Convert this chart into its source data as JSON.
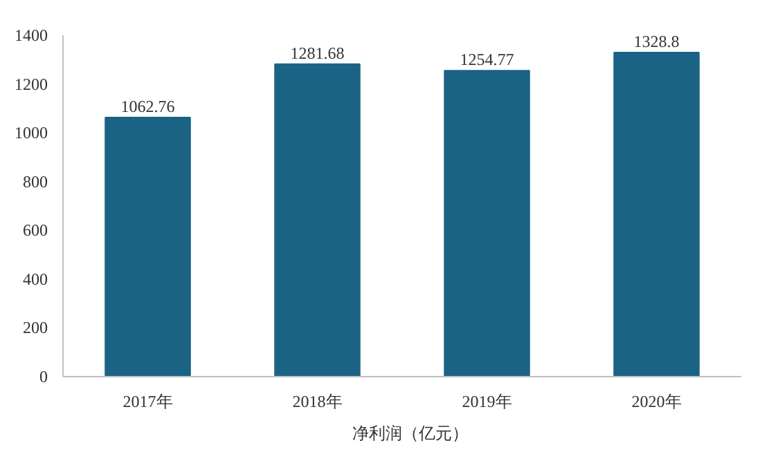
{
  "chart_data": {
    "type": "bar",
    "categories": [
      "2017年",
      "2018年",
      "2019年",
      "2020年"
    ],
    "series": [
      {
        "name": "净利润（亿元）",
        "color": "#1a6385",
        "values": [
          1062.76,
          1281.68,
          1254.77,
          1328.8
        ]
      }
    ],
    "value_labels": [
      "1062.76",
      "1281.68",
      "1254.77",
      "1328.8"
    ],
    "ylim": [
      0,
      1400
    ],
    "yticks": [
      0,
      200,
      400,
      600,
      800,
      1000,
      1200,
      1400
    ],
    "grid": false,
    "legend": "bottom"
  }
}
